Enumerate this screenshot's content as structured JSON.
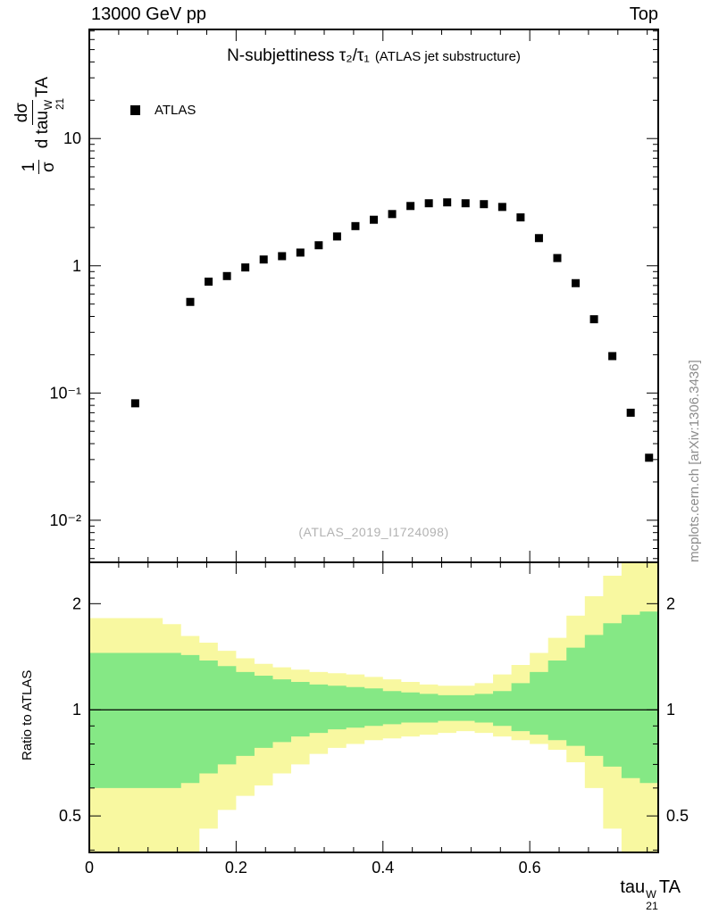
{
  "header": {
    "left_label": "13000 GeV pp",
    "right_label": "Top"
  },
  "top_panel": {
    "title": "N-subjettiness τ₂/τ₁",
    "title_note": "(ATLAS jet substructure)",
    "legend_label": "ATLAS",
    "watermark": "(ATLAS_2019_I1724098)",
    "ylabel": {
      "frac1_num": "1",
      "frac1_den": "σ",
      "frac2_num": "dσ",
      "frac2_den_base": "d tau",
      "frac2_den_sup": "W",
      "frac2_den_sub": "21",
      "frac2_den_tail": "TA"
    }
  },
  "ratio_panel": {
    "ylabel": "Ratio to ATLAS"
  },
  "xaxis": {
    "label_base": "tau",
    "label_sup": "W",
    "label_sub": "21",
    "label_tail": "TA"
  },
  "side_note": "mcplots.cern.ch [arXiv:1306.3436]",
  "colors": {
    "marker": "#000000",
    "band_yellow": "#f8f8a0",
    "band_green": "#85e885",
    "watermark": "#b2b2b2",
    "side_note": "#8c8c8c",
    "frame": "#000000"
  },
  "chart_data": [
    {
      "type": "scatter",
      "panel": "main",
      "title": "N-subjettiness τ2/τ1 (ATLAS jet substructure)",
      "xlabel": "tau21^W TA",
      "ylabel": "1/σ dσ/d tau21^W TA",
      "xscale": "linear",
      "yscale": "log",
      "xlim": [
        0,
        0.775
      ],
      "ylim": [
        0.00467,
        72
      ],
      "xticks": {
        "major": [
          0,
          0.2,
          0.4,
          0.6
        ],
        "labels": [
          "0",
          "0.2",
          "0.4",
          "0.6"
        ],
        "minor_step": 0.04
      },
      "yticks": {
        "major": [
          10,
          1,
          0.1,
          0.01
        ],
        "labels": [
          "10",
          "1",
          "10⁻¹",
          "10⁻²"
        ]
      },
      "series": [
        {
          "name": "ATLAS",
          "marker": "filled-square",
          "color": "#000000",
          "x": [
            0.0625,
            0.1375,
            0.1625,
            0.1875,
            0.2125,
            0.2375,
            0.2625,
            0.2875,
            0.3125,
            0.3375,
            0.3625,
            0.3875,
            0.4125,
            0.4375,
            0.4625,
            0.4875,
            0.5125,
            0.5375,
            0.5625,
            0.5875,
            0.6125,
            0.6375,
            0.6625,
            0.6875,
            0.7125,
            0.7375,
            0.7625
          ],
          "y": [
            0.083,
            0.52,
            0.75,
            0.83,
            0.97,
            1.12,
            1.19,
            1.27,
            1.45,
            1.7,
            2.05,
            2.3,
            2.55,
            2.95,
            3.1,
            3.15,
            3.1,
            3.05,
            2.9,
            2.4,
            1.65,
            1.15,
            0.73,
            0.38,
            0.195,
            0.07,
            0.031
          ]
        }
      ]
    },
    {
      "type": "area",
      "panel": "ratio",
      "title": "Ratio to ATLAS",
      "yscale": "log",
      "xlim": [
        0,
        0.775
      ],
      "ylim": [
        0.394,
        2.62
      ],
      "yticks": {
        "major": [
          2,
          1,
          0.5
        ],
        "labels": [
          "2",
          "1",
          "0.5"
        ],
        "minor": [
          0.4,
          0.6,
          0.7,
          0.8,
          0.9
        ]
      },
      "reference_line": 1,
      "bin_edges": [
        0,
        0.025,
        0.05,
        0.075,
        0.1,
        0.125,
        0.15,
        0.175,
        0.2,
        0.225,
        0.25,
        0.275,
        0.3,
        0.325,
        0.35,
        0.375,
        0.4,
        0.425,
        0.45,
        0.475,
        0.5,
        0.525,
        0.55,
        0.575,
        0.6,
        0.625,
        0.65,
        0.675,
        0.7,
        0.725,
        0.75,
        0.775
      ],
      "bands": [
        {
          "name": "yellow-uncertainty-band",
          "color": "#f8f8a0",
          "hi": [
            1.82,
            1.82,
            1.82,
            1.82,
            1.75,
            1.62,
            1.55,
            1.47,
            1.4,
            1.35,
            1.32,
            1.3,
            1.28,
            1.27,
            1.26,
            1.24,
            1.22,
            1.2,
            1.18,
            1.17,
            1.17,
            1.19,
            1.26,
            1.34,
            1.45,
            1.6,
            1.85,
            2.1,
            2.4,
            2.62,
            2.62
          ],
          "lo": [
            0.39,
            0.39,
            0.39,
            0.39,
            0.39,
            0.39,
            0.46,
            0.52,
            0.57,
            0.61,
            0.66,
            0.7,
            0.75,
            0.78,
            0.8,
            0.82,
            0.83,
            0.84,
            0.85,
            0.86,
            0.87,
            0.86,
            0.84,
            0.82,
            0.8,
            0.77,
            0.71,
            0.6,
            0.46,
            0.39,
            0.39
          ]
        },
        {
          "name": "green-uncertainty-band",
          "color": "#85e885",
          "hi": [
            1.45,
            1.45,
            1.45,
            1.45,
            1.45,
            1.43,
            1.38,
            1.33,
            1.28,
            1.25,
            1.22,
            1.2,
            1.18,
            1.17,
            1.16,
            1.15,
            1.13,
            1.12,
            1.11,
            1.1,
            1.1,
            1.11,
            1.13,
            1.19,
            1.28,
            1.38,
            1.5,
            1.63,
            1.76,
            1.86,
            1.9
          ],
          "lo": [
            0.6,
            0.6,
            0.6,
            0.6,
            0.6,
            0.62,
            0.66,
            0.7,
            0.74,
            0.78,
            0.81,
            0.84,
            0.86,
            0.88,
            0.89,
            0.9,
            0.91,
            0.92,
            0.92,
            0.93,
            0.93,
            0.92,
            0.9,
            0.87,
            0.85,
            0.82,
            0.79,
            0.74,
            0.69,
            0.64,
            0.62
          ]
        }
      ]
    }
  ]
}
